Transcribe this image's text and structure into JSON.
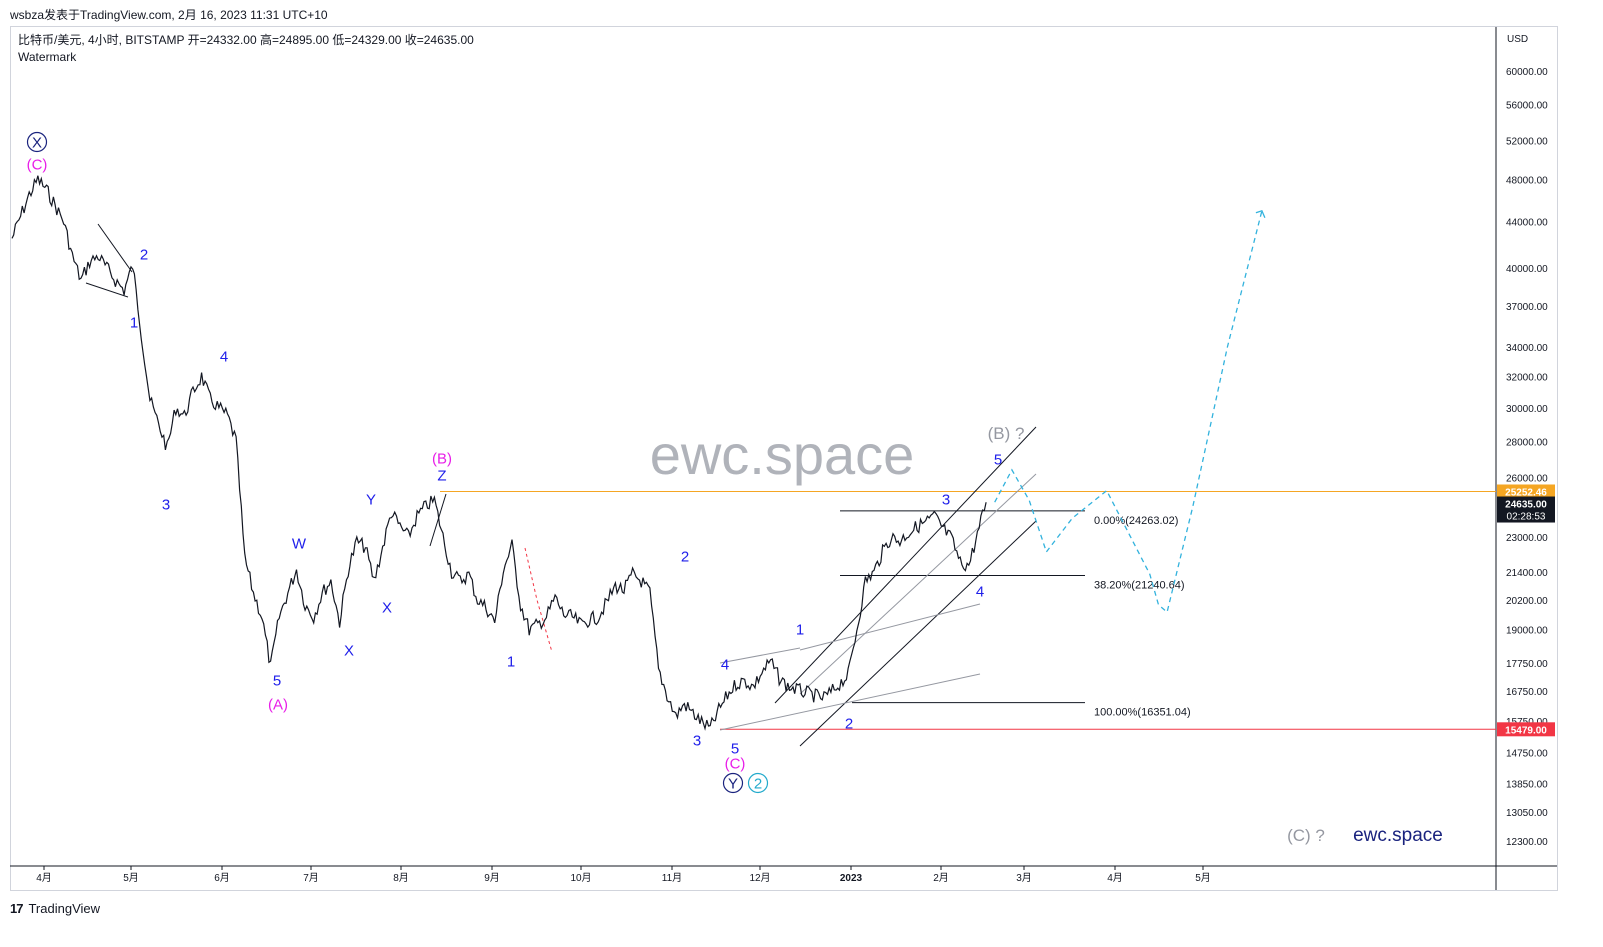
{
  "header": {
    "publish_line": "wsbza发表于TradingView.com, 2月 16, 2023 11:31 UTC+10"
  },
  "legend": {
    "line1": "比特币/美元, 4小时, BITSTAMP  开=24332.00  高=24895.00  低=24329.00  收=24635.00",
    "line2": "Watermark"
  },
  "watermark_center": "ewc.space",
  "watermark_corner": "ewc.space",
  "footer": {
    "logo_mark": "17",
    "brand": "TradingView"
  },
  "colors": {
    "price": "#131722",
    "wave_blue": "#1e1eea",
    "wave_magenta": "#e81ee8",
    "wave_navy": "#1a237e",
    "wave_cyan": "#22aacc",
    "projection": "#32b2dd",
    "resistance": "#f5a623",
    "support": "#f23645",
    "watermark": "#b0b3ba",
    "gray_label": "#9598a1"
  },
  "chart_data": {
    "type": "line",
    "title": "比特币/美元, 4小时, BITSTAMP",
    "ohlc_last": {
      "open": 24332.0,
      "high": 24895.0,
      "low": 24329.0,
      "close": 24635.0
    },
    "x_ticks": [
      "4月",
      "5月",
      "6月",
      "7月",
      "8月",
      "9月",
      "10月",
      "11月",
      "12月",
      "2023",
      "2月",
      "3月",
      "4月",
      "5月"
    ],
    "y_axis": {
      "unit": "USD",
      "scale": "log",
      "ticks": [
        "60000.00",
        "56000.00",
        "52000.00",
        "48000.00",
        "44000.00",
        "40000.00",
        "37000.00",
        "34000.00",
        "32000.00",
        "30000.00",
        "28000.00",
        "26000.00",
        "23000.00",
        "21400.00",
        "20200.00",
        "19000.00",
        "17750.00",
        "16750.00",
        "15750.00",
        "14750.00",
        "13850.00",
        "13050.00",
        "12300.00"
      ]
    },
    "price_badges": [
      {
        "label": "25252.46",
        "kind": "resistance"
      },
      {
        "label": "24635.00",
        "sub": "02:28:53",
        "kind": "last"
      },
      {
        "label": "15479.00",
        "kind": "support"
      }
    ],
    "fibonacci": [
      {
        "label": "0.00%(24263.02)",
        "price": 24263.02
      },
      {
        "label": "38.20%(21240.64)",
        "price": 21240.64
      },
      {
        "label": "100.00%(16351.04)",
        "price": 16351.04
      }
    ],
    "series": [
      {
        "values": [
          [
            0,
            42500
          ],
          [
            1,
            44500
          ],
          [
            2,
            46500
          ],
          [
            3,
            48000
          ],
          [
            4,
            47000
          ],
          [
            5,
            45500
          ],
          [
            6,
            44000
          ],
          [
            7,
            41000
          ],
          [
            8,
            39000
          ],
          [
            9,
            40500
          ],
          [
            10,
            41000
          ],
          [
            11,
            40000
          ],
          [
            12,
            39000
          ],
          [
            13,
            38200
          ],
          [
            14,
            40200
          ],
          [
            15,
            35000
          ],
          [
            16,
            30500
          ],
          [
            17,
            29000
          ],
          [
            18,
            27600
          ],
          [
            19,
            30000
          ],
          [
            20,
            29500
          ],
          [
            21,
            31000
          ],
          [
            22,
            32000
          ],
          [
            23,
            30500
          ],
          [
            24,
            30000
          ],
          [
            25,
            29500
          ],
          [
            26,
            28000
          ],
          [
            27,
            22000
          ],
          [
            28,
            20500
          ],
          [
            29,
            19500
          ],
          [
            30,
            17600
          ],
          [
            31,
            19500
          ],
          [
            32,
            20500
          ],
          [
            33,
            21500
          ],
          [
            34,
            20000
          ],
          [
            35,
            19500
          ],
          [
            36,
            20500
          ],
          [
            37,
            21000
          ],
          [
            38,
            19300
          ],
          [
            39,
            21500
          ],
          [
            40,
            22800
          ],
          [
            41,
            22500
          ],
          [
            42,
            21000
          ],
          [
            43,
            22500
          ],
          [
            44,
            24200
          ],
          [
            45,
            23500
          ],
          [
            46,
            23000
          ],
          [
            47,
            24000
          ],
          [
            48,
            24500
          ],
          [
            49,
            24800
          ],
          [
            50,
            23000
          ],
          [
            51,
            21400
          ],
          [
            52,
            21000
          ],
          [
            53,
            21300
          ],
          [
            54,
            20200
          ],
          [
            55,
            19900
          ],
          [
            56,
            19300
          ],
          [
            57,
            21500
          ],
          [
            58,
            22600
          ],
          [
            59,
            20000
          ],
          [
            60,
            19000
          ],
          [
            61,
            19200
          ],
          [
            62,
            19500
          ],
          [
            63,
            20300
          ],
          [
            64,
            19600
          ],
          [
            65,
            19500
          ],
          [
            66,
            19200
          ],
          [
            67,
            19400
          ],
          [
            68,
            19500
          ],
          [
            69,
            20100
          ],
          [
            70,
            20800
          ],
          [
            71,
            20600
          ],
          [
            72,
            21300
          ],
          [
            73,
            21000
          ],
          [
            74,
            20500
          ],
          [
            75,
            17500
          ],
          [
            76,
            16600
          ],
          [
            77,
            15900
          ],
          [
            78,
            16300
          ],
          [
            79,
            16000
          ],
          [
            80,
            15700
          ],
          [
            81,
            15500
          ],
          [
            82,
            16100
          ],
          [
            83,
            16600
          ],
          [
            84,
            17000
          ],
          [
            85,
            17100
          ],
          [
            86,
            16900
          ],
          [
            87,
            17400
          ],
          [
            88,
            17800
          ],
          [
            89,
            17200
          ],
          [
            90,
            16900
          ],
          [
            91,
            16800
          ],
          [
            92,
            16700
          ],
          [
            93,
            16600
          ],
          [
            94,
            16500
          ],
          [
            95,
            16700
          ],
          [
            96,
            17000
          ],
          [
            97,
            17300
          ],
          [
            98,
            19000
          ],
          [
            99,
            21000
          ],
          [
            100,
            21400
          ],
          [
            101,
            22300
          ],
          [
            102,
            23000
          ],
          [
            103,
            22800
          ],
          [
            104,
            23200
          ],
          [
            105,
            23500
          ],
          [
            106,
            23700
          ],
          [
            107,
            24000
          ],
          [
            108,
            23400
          ],
          [
            109,
            22900
          ],
          [
            110,
            21800
          ],
          [
            111,
            21700
          ],
          [
            112,
            23100
          ],
          [
            113,
            24700
          ]
        ]
      }
    ],
    "projection": [
      [
        114,
        24700
      ],
      [
        116,
        26400
      ],
      [
        118,
        24800
      ],
      [
        120,
        22300
      ],
      [
        123,
        23900
      ],
      [
        127,
        25300
      ],
      [
        132,
        21300
      ],
      [
        133,
        20000
      ],
      [
        134,
        19700
      ],
      [
        137,
        24500
      ],
      [
        141,
        34000
      ],
      [
        145,
        45000
      ]
    ],
    "wave_labels": [
      {
        "text": "X",
        "circled": true,
        "color_key": "wave_navy"
      },
      {
        "text": "(C)",
        "color_key": "wave_magenta"
      },
      {
        "text": "2",
        "color_key": "wave_blue"
      },
      {
        "text": "1",
        "color_key": "wave_blue"
      },
      {
        "text": "3",
        "color_key": "wave_blue"
      },
      {
        "text": "4",
        "color_key": "wave_blue"
      },
      {
        "text": "5",
        "color_key": "wave_blue"
      },
      {
        "text": "(A)",
        "color_key": "wave_magenta"
      },
      {
        "text": "W",
        "color_key": "wave_blue"
      },
      {
        "text": "X",
        "color_key": "wave_blue"
      },
      {
        "text": "Y",
        "color_key": "wave_blue"
      },
      {
        "text": "X",
        "color_key": "wave_blue"
      },
      {
        "text": "(B)",
        "color_key": "wave_magenta"
      },
      {
        "text": "Z",
        "color_key": "wave_blue"
      },
      {
        "text": "1",
        "color_key": "wave_blue"
      },
      {
        "text": "2",
        "color_key": "wave_blue"
      },
      {
        "text": "3",
        "color_key": "wave_blue"
      },
      {
        "text": "4",
        "color_key": "wave_blue"
      },
      {
        "text": "5",
        "color_key": "wave_blue"
      },
      {
        "text": "(C)",
        "color_key": "wave_magenta"
      },
      {
        "text": "Y",
        "circled": true,
        "color_key": "wave_navy"
      },
      {
        "text": "2",
        "circled": true,
        "color_key": "wave_cyan"
      },
      {
        "text": "1",
        "color_key": "wave_blue"
      },
      {
        "text": "2",
        "color_key": "wave_blue"
      },
      {
        "text": "3",
        "color_key": "wave_blue"
      },
      {
        "text": "4",
        "color_key": "wave_blue"
      },
      {
        "text": "5",
        "color_key": "wave_blue"
      },
      {
        "text": "(B) ?",
        "color_key": "gray_label"
      },
      {
        "text": "(C) ?",
        "color_key": "gray_label"
      }
    ]
  }
}
